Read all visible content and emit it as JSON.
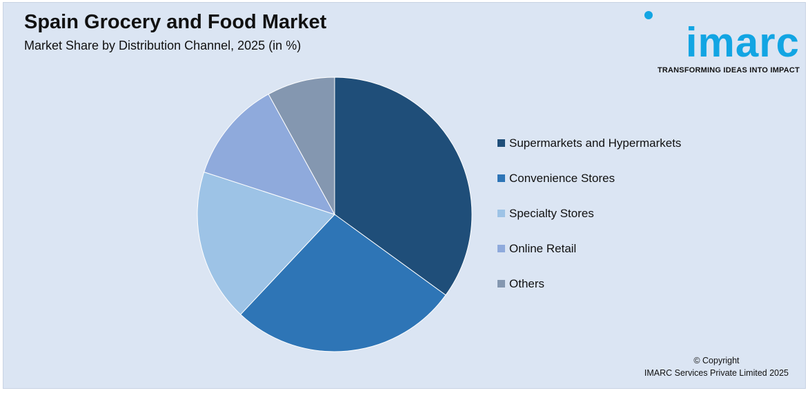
{
  "header": {
    "title": "Spain Grocery and Food Market",
    "subtitle": "Market Share by Distribution Channel, 2025 (in %)"
  },
  "logo": {
    "word": "imarc",
    "tagline": "TRANSFORMING IDEAS INTO IMPACT",
    "color": "#12a5e3"
  },
  "chart_data": {
    "type": "pie",
    "title": "Spain Grocery and Food Market",
    "subtitle": "Market Share by Distribution Channel, 2025 (in %)",
    "legend_position": "right",
    "series": [
      {
        "name": "",
        "categories": [
          "Supermarkets and Hypermarkets",
          "Convenience Stores",
          "Specialty Stores",
          "Online Retail",
          "Others"
        ],
        "values": [
          35,
          27,
          18,
          12,
          8
        ],
        "colors": [
          "#1f4e79",
          "#2e75b6",
          "#9dc3e6",
          "#8faadc",
          "#8497b0"
        ]
      }
    ]
  },
  "footer": {
    "copyright_line1": "© Copyright",
    "copyright_line2": "IMARC Services Private Limited 2025"
  }
}
